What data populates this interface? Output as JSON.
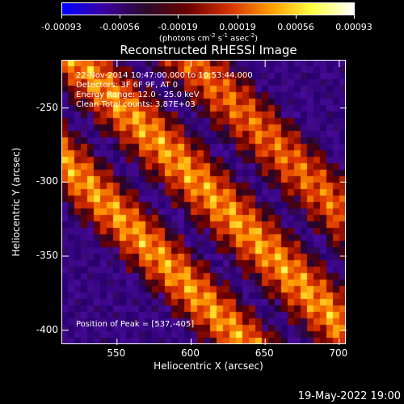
{
  "chart_data": {
    "type": "heatmap",
    "title": "Reconstructed RHESSI Image",
    "xlabel": "Heliocentric X (arcsec)",
    "ylabel": "Heliocentric Y (arcsec)",
    "xlim": [
      513,
      705
    ],
    "ylim": [
      -410,
      -218
    ],
    "x_ticks": [
      550,
      600,
      650,
      700
    ],
    "y_ticks": [
      -250,
      -300,
      -350,
      -400
    ],
    "colorbar": {
      "range": [
        -0.00093,
        0.00093
      ],
      "tick_labels": [
        "-0.00093",
        "-0.00056",
        "-0.00019",
        "0.00019",
        "0.00056",
        "0.00093"
      ],
      "unit_parts": [
        "(photons cm",
        "-2",
        " s",
        "-1",
        " asec",
        "-2",
        ")"
      ],
      "colors": [
        "#0000ff",
        "#3a00a0",
        "#2a0a2a",
        "#6a0000",
        "#d43000",
        "#ff9a00",
        "#ffff40",
        "#ffffff"
      ]
    },
    "annotations": {
      "time_range": "22-Nov-2014 10:47:00.000 to 10:53:44.000",
      "detectors": "Detectors: 3F 6F 9F, AT 0",
      "energy": "Energy Range: 12.0 - 25.0 keV",
      "clean": "Clean     Total counts: 3.87E+03",
      "peak": "Position of Peak = [537,-405]"
    }
  },
  "footer": {
    "timestamp": "19-May-2022 19:00"
  }
}
